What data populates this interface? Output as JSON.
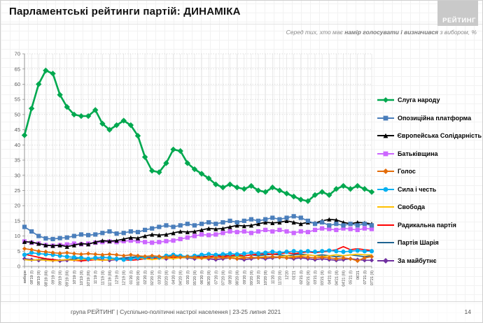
{
  "header": {
    "title": "Парламентські рейтинги партій: ДИНАМІКА",
    "logo": "РЕЙТИНГ",
    "subtitle_prefix": "Серед тих, хто має ",
    "subtitle_bold": "намір голосувати і визначився",
    "subtitle_suffix": " з вибором, %"
  },
  "footer": {
    "text": "група РЕЙТИНГ | Суспільно-політичні настрої населення | 23-25 липня 2021",
    "page_number": "14"
  },
  "chart_data": {
    "type": "line",
    "title": "Парламентські рейтинги партій: ДИНАМІКА",
    "xlabel": "",
    "ylabel": "",
    "ylim": [
      0,
      70
    ],
    "ytick_step": 5,
    "grid": true,
    "legend_position": "right",
    "categories": [
      "вибори",
      "08'19 (I)",
      "08'19 (II)",
      "08'19 (III)",
      "09'19 (I)",
      "09'19 (II)",
      "09'19 (III)",
      "10'19 (I)",
      "10'19 (II)",
      "10'19 (III)",
      "11'19 (I)",
      "11'19 (II)",
      "11'19 (III)",
      "12'19 (I)",
      "12'19 (II)",
      "01'20 (I)",
      "01'20 (II)",
      "02'20 (I)",
      "02'20 (II)",
      "03'20 (I)",
      "03'20 (II)",
      "04'20 (I)",
      "04'20 (II)",
      "05'20 (I)",
      "05'20 (II)",
      "06'20 (I)",
      "06'20 (II)",
      "07'20 (I)",
      "07'20 (II)",
      "08'20 (I)",
      "08'20 (II)",
      "09'20 (I)",
      "09'20 (II)",
      "10'20 (I)",
      "10'20 (II)",
      "11'20 (I)",
      "11'20 (II)",
      "12'20",
      "01'21",
      "02'21 (I)",
      "02'21 (II)",
      "03'21 (I)",
      "03'21 (II)",
      "04'21 (I)",
      "04'21 (II)",
      "04'21 (III)",
      "05'21 (I)",
      "06'21",
      "07'21 (I)",
      "07'21 (II)"
    ],
    "series": [
      {
        "name": "Слуга народу",
        "color": "#00A84F",
        "marker": "diamond",
        "line_width": 2.6,
        "values": [
          43.2,
          52,
          60,
          64.5,
          63.5,
          56.5,
          52.5,
          50,
          49.5,
          49.5,
          51.5,
          47,
          45,
          46.5,
          48,
          46.5,
          43,
          36,
          31.5,
          31,
          34,
          38.5,
          38,
          34,
          32,
          30.5,
          29,
          27,
          26,
          27,
          26,
          25.5,
          26.5,
          25,
          24.5,
          26,
          25,
          24,
          23,
          22,
          21.5,
          23.5,
          24.5,
          23.5,
          25.5,
          26.5,
          25.5,
          26.5,
          25.5,
          24.5
        ]
      },
      {
        "name": "Опозиційна платформа",
        "color": "#4A7EBB",
        "marker": "square",
        "line_width": 1.7,
        "values": [
          13,
          11.5,
          10,
          9.2,
          9,
          9.3,
          9.5,
          10,
          10.5,
          10.3,
          10.5,
          11,
          11.5,
          10.8,
          11,
          11.5,
          11.3,
          12,
          12.5,
          13,
          13.5,
          13,
          13.5,
          14,
          13.5,
          14,
          14.5,
          14,
          14.5,
          15,
          14.5,
          15,
          15.5,
          15,
          15.5,
          16,
          15.5,
          16,
          16.5,
          16,
          15,
          14,
          14.5,
          13.5,
          14,
          13.5,
          14,
          13.5,
          14,
          13.5
        ]
      },
      {
        "name": "Європейська Солідарність",
        "color": "#000000",
        "marker": "triangle",
        "line_width": 1.7,
        "values": [
          8.1,
          8,
          7.5,
          7,
          6.8,
          7,
          6.5,
          7,
          7.5,
          7.3,
          8,
          8.5,
          8.3,
          8.5,
          9,
          9.5,
          9.3,
          10,
          10.5,
          10.3,
          10.5,
          11,
          11.5,
          11.3,
          11.5,
          12,
          12.5,
          12.3,
          12.5,
          13,
          13.5,
          13.3,
          13.5,
          14,
          14.5,
          14.3,
          14.5,
          15,
          14.5,
          14,
          14.5,
          14.3,
          15,
          15.5,
          15.3,
          14.5,
          14,
          14.5,
          14.3,
          14
        ]
      },
      {
        "name": "Батьківщина",
        "color": "#CC66FF",
        "marker": "square",
        "line_width": 1.7,
        "values": [
          8.2,
          7.8,
          7.5,
          7,
          6.8,
          7,
          7.2,
          7.5,
          7.3,
          7.5,
          7.8,
          8,
          8.2,
          8,
          8.3,
          8.5,
          8.3,
          8,
          7.8,
          8,
          8.3,
          8.5,
          9,
          9.5,
          10,
          10.5,
          10.3,
          10.5,
          11,
          11.5,
          11.3,
          11.5,
          11,
          11.5,
          12,
          11.5,
          12,
          11.5,
          11,
          11.5,
          11.3,
          12,
          12.5,
          12.3,
          12,
          12.5,
          12.3,
          12,
          12.5,
          12.3
        ]
      },
      {
        "name": "Голос",
        "color": "#E36C0A",
        "marker": "diamond",
        "line_width": 1.7,
        "values": [
          5.8,
          5.5,
          5,
          4.8,
          4.5,
          4.3,
          4.5,
          4.2,
          4,
          4.2,
          4,
          3.8,
          4,
          3.8,
          3.5,
          3.8,
          3.5,
          3.3,
          3.5,
          3.3,
          3,
          3.3,
          3,
          3.2,
          3,
          2.8,
          3,
          2.8,
          3,
          2.8,
          2.5,
          2.8,
          3,
          2.8,
          3,
          3.2,
          3,
          2.8,
          3,
          3.2,
          3,
          2.8,
          3,
          2.8,
          2.5,
          2.8,
          2.5,
          1.8,
          2.8,
          3.2
        ]
      },
      {
        "name": "Сила і честь",
        "color": "#00B0F0",
        "marker": "circle",
        "line_width": 1.7,
        "values": [
          3.8,
          4.5,
          4.2,
          4,
          3.8,
          3.5,
          3.2,
          3,
          2.8,
          2.5,
          2.8,
          3,
          2.8,
          2.5,
          2.2,
          2.5,
          2.8,
          3,
          3.2,
          3,
          3.5,
          3.8,
          3.5,
          3.2,
          3.5,
          3.8,
          4,
          3.8,
          4,
          4.2,
          4,
          4.2,
          4.5,
          4.3,
          4.5,
          4.8,
          4.5,
          4.8,
          5,
          4.8,
          5,
          4.8,
          5,
          5.2,
          5,
          4.8,
          5,
          5.2,
          5,
          5
        ]
      },
      {
        "name": "Свобода",
        "color": "#FFC000",
        "marker": "none",
        "line_width": 1.7,
        "values": [
          2.2,
          2,
          2.2,
          2,
          1.8,
          2,
          2.2,
          2,
          2.2,
          2.5,
          2.2,
          2,
          2.2,
          2.5,
          2.2,
          2.5,
          2.8,
          2.5,
          2.2,
          2.5,
          2.8,
          2.5,
          2.8,
          3,
          2.8,
          2.5,
          2.8,
          3,
          2.8,
          3,
          3.2,
          3,
          2.8,
          3,
          3.2,
          3,
          3.2,
          3.5,
          3.2,
          3.5,
          3.8,
          3.5,
          3.2,
          3.5,
          3.8,
          3.5,
          3.8,
          4,
          3.8,
          3.8
        ]
      },
      {
        "name": "Радикальна партія",
        "color": "#FF0000",
        "marker": "none",
        "line_width": 1.7,
        "values": [
          4,
          3.5,
          3,
          2.5,
          2.2,
          2,
          2.2,
          2,
          1.8,
          2,
          2.2,
          2,
          2.2,
          2.5,
          2.2,
          2,
          2.2,
          2.5,
          2.8,
          2.5,
          2.8,
          3,
          2.8,
          3,
          3.2,
          3,
          3.2,
          3.5,
          3.2,
          3.5,
          3.8,
          3.5,
          3.8,
          4,
          4.2,
          4,
          4.2,
          4.5,
          4.2,
          4.5,
          4.8,
          4.5,
          4.8,
          5,
          5.5,
          6.5,
          5.5,
          5.8,
          5.5,
          5.2
        ]
      },
      {
        "name": "Партія Шарія",
        "color": "#1F6391",
        "marker": "none",
        "line_width": 1.7,
        "values": [
          2.2,
          2,
          2.2,
          2.5,
          2.2,
          2,
          2.2,
          2.5,
          2.8,
          2.5,
          2.8,
          3,
          2.8,
          2.5,
          2.8,
          3,
          3.2,
          3,
          2.8,
          3,
          3.2,
          3.5,
          3.2,
          3,
          3.2,
          3.5,
          3.2,
          3.5,
          3.8,
          3.5,
          3.2,
          3.5,
          3.8,
          3.5,
          3.8,
          4,
          3.8,
          3.5,
          3.8,
          4,
          3.8,
          3.5,
          3.8,
          3.5,
          3.2,
          3.5,
          3.8,
          3.5,
          3.2,
          3.5
        ]
      },
      {
        "name": "За майбутнє",
        "color": "#7030A0",
        "marker": "diamond",
        "line_width": 1.7,
        "values": [
          2.5,
          2.2,
          2,
          2.2,
          2,
          1.8,
          2,
          2.2,
          2,
          2.2,
          2.5,
          2.2,
          2,
          2.2,
          2.5,
          2.8,
          2.5,
          2.8,
          3,
          2.8,
          2.5,
          2.8,
          3,
          2.8,
          2.5,
          2.8,
          2.5,
          2.2,
          2.5,
          2.8,
          2.5,
          2.2,
          2.5,
          2.8,
          2.5,
          2.8,
          3,
          2.8,
          2.5,
          2.8,
          2.5,
          2.2,
          2.5,
          2.2,
          2,
          2.2,
          2.5,
          2.2,
          2,
          2
        ]
      }
    ]
  }
}
